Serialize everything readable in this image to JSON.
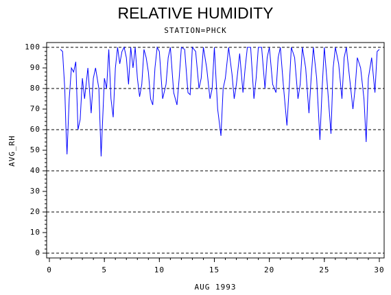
{
  "chart_data": {
    "type": "line",
    "title": "RELATIVE HUMIDITY",
    "subtitle": "STATION=PHCK",
    "x_label": "AUG 1993",
    "y_label": "AVG_RH",
    "color": "#0000ff",
    "xlim": [
      0,
      30
    ],
    "xticks": [
      0,
      5,
      10,
      15,
      20,
      25,
      30
    ],
    "xminorticks": [
      0,
      1,
      2,
      3,
      4,
      5,
      6,
      7,
      8,
      9,
      10,
      11,
      12,
      13,
      14,
      15,
      16,
      17,
      18,
      19,
      20,
      21,
      22,
      23,
      24,
      25,
      26,
      27,
      28,
      29,
      30
    ],
    "ylim": [
      0,
      100
    ],
    "yticks": [
      0,
      10,
      20,
      30,
      40,
      50,
      60,
      70,
      80,
      90,
      100
    ],
    "yminorticks": [
      0,
      2,
      4,
      6,
      8,
      10,
      12,
      14,
      16,
      18,
      20,
      22,
      24,
      26,
      28,
      30,
      32,
      34,
      36,
      38,
      40,
      42,
      44,
      46,
      48,
      50,
      52,
      54,
      56,
      58,
      60,
      62,
      64,
      66,
      68,
      70,
      72,
      74,
      76,
      78,
      80,
      82,
      84,
      86,
      88,
      90,
      92,
      94,
      96,
      98,
      100
    ],
    "ygrid": [
      0,
      20,
      40,
      60,
      80,
      100
    ],
    "x": [
      1.0,
      1.2,
      1.4,
      1.5,
      1.6,
      1.8,
      2.0,
      2.2,
      2.4,
      2.6,
      2.8,
      3.0,
      3.2,
      3.5,
      3.8,
      4.0,
      4.2,
      4.5,
      4.7,
      5.0,
      5.2,
      5.4,
      5.6,
      5.8,
      6.0,
      6.2,
      6.4,
      6.6,
      6.8,
      7.0,
      7.2,
      7.4,
      7.6,
      7.8,
      8.0,
      8.2,
      8.4,
      8.6,
      8.8,
      9.0,
      9.2,
      9.4,
      9.6,
      9.8,
      10.0,
      10.3,
      10.6,
      10.8,
      11.0,
      11.3,
      11.6,
      11.8,
      12.0,
      12.3,
      12.6,
      12.8,
      13.0,
      13.3,
      13.6,
      13.8,
      14.0,
      14.3,
      14.6,
      14.8,
      15.0,
      15.3,
      15.6,
      15.8,
      16.0,
      16.3,
      16.6,
      16.8,
      17.0,
      17.3,
      17.6,
      17.8,
      18.0,
      18.3,
      18.6,
      18.8,
      19.0,
      19.3,
      19.6,
      19.8,
      20.0,
      20.3,
      20.6,
      20.8,
      21.0,
      21.3,
      21.6,
      21.8,
      22.0,
      22.3,
      22.6,
      22.8,
      23.0,
      23.3,
      23.6,
      23.8,
      24.0,
      24.3,
      24.6,
      24.8,
      25.0,
      25.3,
      25.6,
      25.8,
      26.0,
      26.3,
      26.6,
      26.8,
      27.0,
      27.3,
      27.6,
      27.8,
      28.0,
      28.3,
      28.6,
      28.8,
      29.0,
      29.3,
      29.6,
      29.8,
      30.0
    ],
    "values": [
      99,
      98,
      80,
      62,
      48,
      75,
      90,
      88,
      93,
      60,
      65,
      85,
      75,
      90,
      68,
      85,
      90,
      80,
      47,
      85,
      80,
      99,
      75,
      66,
      90,
      100,
      92,
      98,
      100,
      95,
      82,
      100,
      90,
      100,
      85,
      76,
      82,
      99,
      95,
      88,
      75,
      72,
      90,
      100,
      98,
      75,
      82,
      95,
      100,
      78,
      72,
      85,
      100,
      99,
      78,
      77,
      100,
      98,
      80,
      85,
      100,
      90,
      75,
      80,
      100,
      70,
      57,
      80,
      85,
      100,
      87,
      75,
      82,
      97,
      78,
      90,
      100,
      100,
      75,
      85,
      100,
      100,
      80,
      95,
      100,
      82,
      78,
      95,
      100,
      80,
      62,
      80,
      100,
      95,
      75,
      82,
      100,
      90,
      68,
      85,
      100,
      85,
      55,
      80,
      100,
      80,
      58,
      90,
      100,
      92,
      75,
      95,
      100,
      85,
      70,
      80,
      95,
      90,
      75,
      54,
      85,
      95,
      78,
      98,
      99
    ]
  }
}
